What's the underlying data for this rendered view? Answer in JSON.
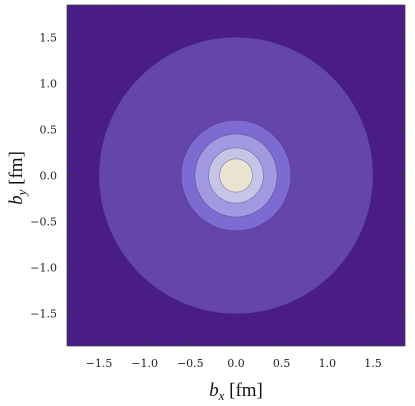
{
  "chart_data": {
    "type": "contour",
    "title": "",
    "xlabel": {
      "main": "b",
      "sub": "x",
      "unit": " [fm]"
    },
    "ylabel": {
      "main": "b",
      "sub": "y",
      "unit": " [fm]"
    },
    "xlim": [
      -1.85,
      1.85
    ],
    "ylim": [
      -1.85,
      1.85
    ],
    "xticks": [
      -1.5,
      -1.0,
      -0.5,
      0.0,
      0.5,
      1.0,
      1.5
    ],
    "yticks": [
      -1.5,
      -1.0,
      -0.5,
      0.0,
      0.5,
      1.0,
      1.5
    ],
    "xtick_labels": [
      "−1.5",
      "−1.0",
      "−0.5",
      "0.0",
      "0.5",
      "1.0",
      "1.5"
    ],
    "ytick_labels": [
      "−1.5",
      "−1.0",
      "−0.5",
      "0.0",
      "0.5",
      "1.0",
      "1.5"
    ],
    "background_color": "#4a1c86",
    "contour_levels": [
      {
        "radius_fm": 1.5,
        "color": "#6446aa"
      },
      {
        "radius_fm": 0.6,
        "color": "#7d6bd1"
      },
      {
        "radius_fm": 0.45,
        "color": "#a29ae0"
      },
      {
        "radius_fm": 0.3,
        "color": "#c6c5e8"
      },
      {
        "radius_fm": 0.18,
        "color": "#ebe4d3"
      }
    ],
    "contour_center": [
      0.0,
      0.0
    ],
    "grid": false,
    "legend": "none"
  }
}
